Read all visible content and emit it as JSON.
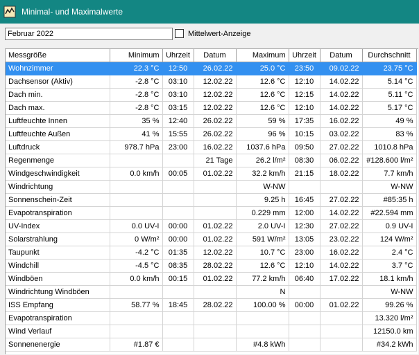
{
  "window": {
    "title": "Minimal- und Maximalwerte"
  },
  "controls": {
    "month_value": "Februar 2022",
    "average_checkbox_label": "Mittelwert-Anzeige"
  },
  "columns": [
    "Messgröße",
    "Minimum",
    "Uhrzeit",
    "Datum",
    "Maximum",
    "Uhrzeit",
    "Datum",
    "Durchschnitt"
  ],
  "rows": [
    [
      "Wohnzimmer",
      "22.3 °C",
      "12:50",
      "26.02.22",
      "25.0 °C",
      "23:50",
      "09.02.22",
      "23.75 °C"
    ],
    [
      "Dachsensor (Aktiv)",
      "-2.8 °C",
      "03:10",
      "12.02.22",
      "12.6 °C",
      "12:10",
      "14.02.22",
      "5.14 °C"
    ],
    [
      "Dach min.",
      "-2.8 °C",
      "03:10",
      "12.02.22",
      "12.6 °C",
      "12:15",
      "14.02.22",
      "5.11 °C"
    ],
    [
      "Dach max.",
      "-2.8 °C",
      "03:15",
      "12.02.22",
      "12.6 °C",
      "12:10",
      "14.02.22",
      "5.17 °C"
    ],
    [
      "Luftfeuchte Innen",
      "35 %",
      "12:40",
      "26.02.22",
      "59 %",
      "17:35",
      "16.02.22",
      "49 %"
    ],
    [
      "Luftfeuchte Außen",
      "41 %",
      "15:55",
      "26.02.22",
      "96 %",
      "10:15",
      "03.02.22",
      "83 %"
    ],
    [
      "Luftdruck",
      "978.7 hPa",
      "23:00",
      "16.02.22",
      "1037.6 hPa",
      "09:50",
      "27.02.22",
      "1010.8 hPa"
    ],
    [
      "Regenmenge",
      "",
      "",
      "21 Tage",
      "26.2 l/m²",
      "08:30",
      "06.02.22",
      "#128.600 l/m²"
    ],
    [
      "Windgeschwindigkeit",
      "0.0 km/h",
      "00:05",
      "01.02.22",
      "32.2 km/h",
      "21:15",
      "18.02.22",
      "7.7 km/h"
    ],
    [
      "Windrichtung",
      "",
      "",
      "",
      "W-NW",
      "",
      "",
      "W-NW"
    ],
    [
      "Sonnenschein-Zeit",
      "",
      "",
      "",
      "9.25 h",
      "16:45",
      "27.02.22",
      "#85:35 h"
    ],
    [
      "Evapotranspiration",
      "",
      "",
      "",
      "0.229 mm",
      "12:00",
      "14.02.22",
      "#22.594 mm"
    ],
    [
      "UV-Index",
      "0.0 UV-I",
      "00:00",
      "01.02.22",
      "2.0 UV-I",
      "12:30",
      "27.02.22",
      "0.9 UV-I"
    ],
    [
      "Solarstrahlung",
      "0 W/m²",
      "00:00",
      "01.02.22",
      "591 W/m²",
      "13:05",
      "23.02.22",
      "124 W/m²"
    ],
    [
      "Taupunkt",
      "-4.2 °C",
      "01:35",
      "12.02.22",
      "10.7 °C",
      "23:00",
      "16.02.22",
      "2.4 °C"
    ],
    [
      "Windchill",
      "-4.5 °C",
      "08:35",
      "28.02.22",
      "12.6 °C",
      "12:10",
      "14.02.22",
      "3.7 °C"
    ],
    [
      "Windböen",
      "0.0 km/h",
      "00:15",
      "01.02.22",
      "77.2 km/h",
      "06:40",
      "17.02.22",
      "18.1 km/h"
    ],
    [
      "Windrichtung Windböen",
      "",
      "",
      "",
      "N",
      "",
      "",
      "W-NW"
    ],
    [
      "ISS Empfang",
      "58.77 %",
      "18:45",
      "28.02.22",
      "100.00 %",
      "00:00",
      "01.02.22",
      "99.26 %"
    ],
    [
      "Evapotranspiration",
      "",
      "",
      "",
      "",
      "",
      "",
      "13.320 l/m²"
    ],
    [
      "Wind Verlauf",
      "",
      "",
      "",
      "",
      "",
      "",
      "12150.0 km"
    ],
    [
      "Sonnenenergie",
      "#1.87 €",
      "",
      "",
      "#4.8 kWh",
      "",
      "",
      "#34.2 kWh"
    ]
  ],
  "selected_row": 0,
  "colors": {
    "titlebar": "#138683",
    "selection": "#3390f0"
  }
}
